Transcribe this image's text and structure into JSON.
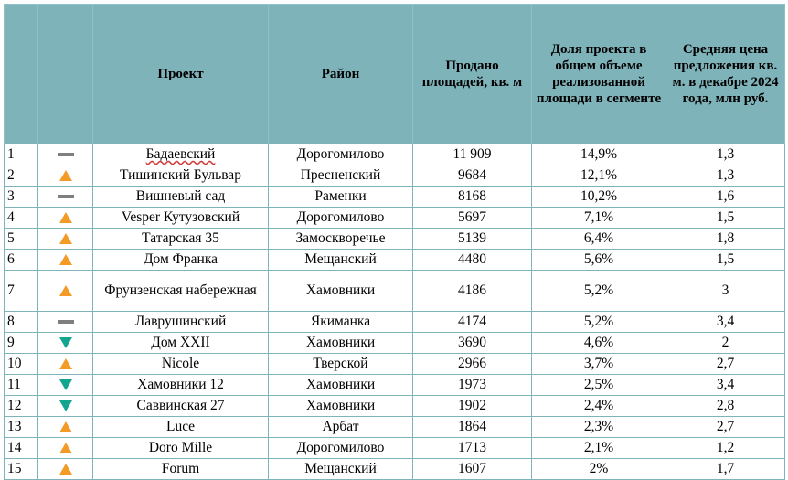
{
  "header": {
    "title": "Проект",
    "district": "Район",
    "sold": "Продано площадей, кв. м",
    "share": "Доля проекта в общем объеме реализованной площади в сегменте",
    "price": "Средняя цена предложения кв. м. в декабре 2024 года, млн руб."
  },
  "colors": {
    "header_bg": "#7fb3ba",
    "up": "#f39a27",
    "down": "#13a58e",
    "same": "#7f7f7f"
  },
  "rows": [
    {
      "n": "1",
      "trend": "same",
      "project": "Бадаевский",
      "district": "Дорогомилово",
      "sold": "11 909",
      "share": "14,9%",
      "price": "1,3"
    },
    {
      "n": "2",
      "trend": "up",
      "project": "Тишинский Бульвар",
      "district": "Пресненский",
      "sold": "9684",
      "share": "12,1%",
      "price": "1,3"
    },
    {
      "n": "3",
      "trend": "same",
      "project": "Вишневый сад",
      "district": "Раменки",
      "sold": "8168",
      "share": "10,2%",
      "price": "1,6"
    },
    {
      "n": "4",
      "trend": "up",
      "project": "Vesper Кутузовский",
      "district": "Дорогомилово",
      "sold": "5697",
      "share": "7,1%",
      "price": "1,5"
    },
    {
      "n": "5",
      "trend": "up",
      "project": "Татарская 35",
      "district": "Замоскворечье",
      "sold": "5139",
      "share": "6,4%",
      "price": "1,8"
    },
    {
      "n": "6",
      "trend": "up",
      "project": "Дом Франка",
      "district": "Мещанский",
      "sold": "4480",
      "share": "5,6%",
      "price": "1,5"
    },
    {
      "n": "7",
      "trend": "up",
      "project": "Фрунзенская набережная",
      "district": "Хамовники",
      "sold": "4186",
      "share": "5,2%",
      "price": "3"
    },
    {
      "n": "8",
      "trend": "same",
      "project": "Лаврушинский",
      "district": "Якиманка",
      "sold": "4174",
      "share": "5,2%",
      "price": "3,4"
    },
    {
      "n": "9",
      "trend": "down",
      "project": "Дом XXII",
      "district": "Хамовники",
      "sold": "3690",
      "share": "4,6%",
      "price": "2"
    },
    {
      "n": "10",
      "trend": "up",
      "project": "Nicole",
      "district": "Тверской",
      "sold": "2966",
      "share": "3,7%",
      "price": "2,7"
    },
    {
      "n": "11",
      "trend": "down",
      "project": "Хамовники 12",
      "district": "Хамовники",
      "sold": "1973",
      "share": "2,5%",
      "price": "3,4"
    },
    {
      "n": "12",
      "trend": "down",
      "project": "Саввинская 27",
      "district": "Хамовники",
      "sold": "1902",
      "share": "2,4%",
      "price": "2,8"
    },
    {
      "n": "13",
      "trend": "up",
      "project": "Luce",
      "district": "Арбат",
      "sold": "1864",
      "share": "2,3%",
      "price": "2,7"
    },
    {
      "n": "14",
      "trend": "up",
      "project": "Doro Mille",
      "district": "Дорогомилово",
      "sold": "1713",
      "share": "2,1%",
      "price": "1,2"
    },
    {
      "n": "15",
      "trend": "up",
      "project": "Forum",
      "district": "Мещанский",
      "sold": "1607",
      "share": "2%",
      "price": "1,7"
    }
  ]
}
